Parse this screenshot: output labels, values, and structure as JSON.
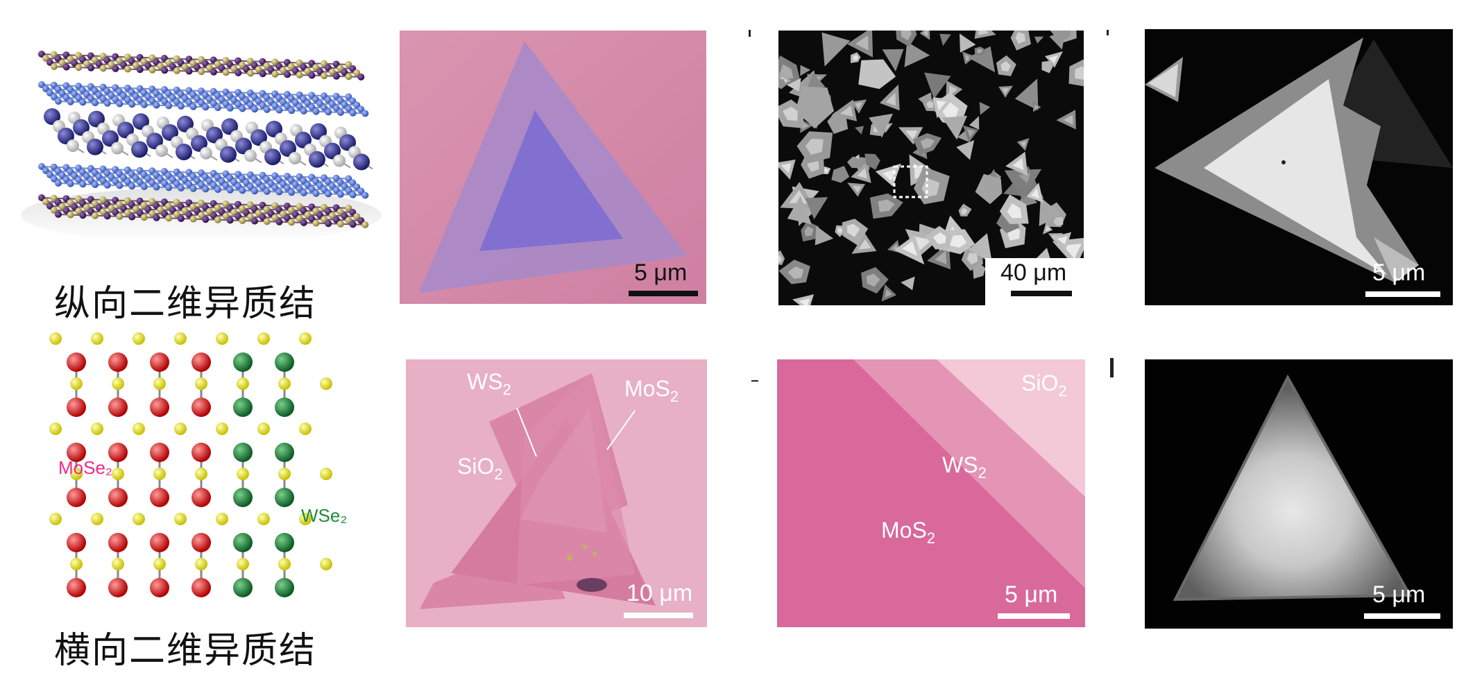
{
  "captions": {
    "vertical": "纵向二维异质结",
    "lateral": "横向二维异质结"
  },
  "lattice_labels": {
    "left": "MoSe₂",
    "right": "WSe₂"
  },
  "scale_bars": {
    "p1": "5 μm",
    "p2": "40 μm",
    "p3": "5 μm",
    "p4": "10 μm",
    "p5": "5 μm",
    "p6": "5 μm"
  },
  "p4_labels": {
    "ws2": "WS",
    "mos2": "MoS",
    "sio2": "SiO",
    "sub": "2"
  },
  "p5_labels": {
    "sio2": "SiO",
    "ws2": "WS",
    "mos2": "MoS",
    "sub": "2"
  },
  "colors": {
    "mose2_label": "#ee2a8a",
    "wse2_label": "#1f8a3e",
    "optical_pink": "#d98aa8",
    "blue_layer": "#5a78d8",
    "purple_layer": "#4a1e5e"
  }
}
